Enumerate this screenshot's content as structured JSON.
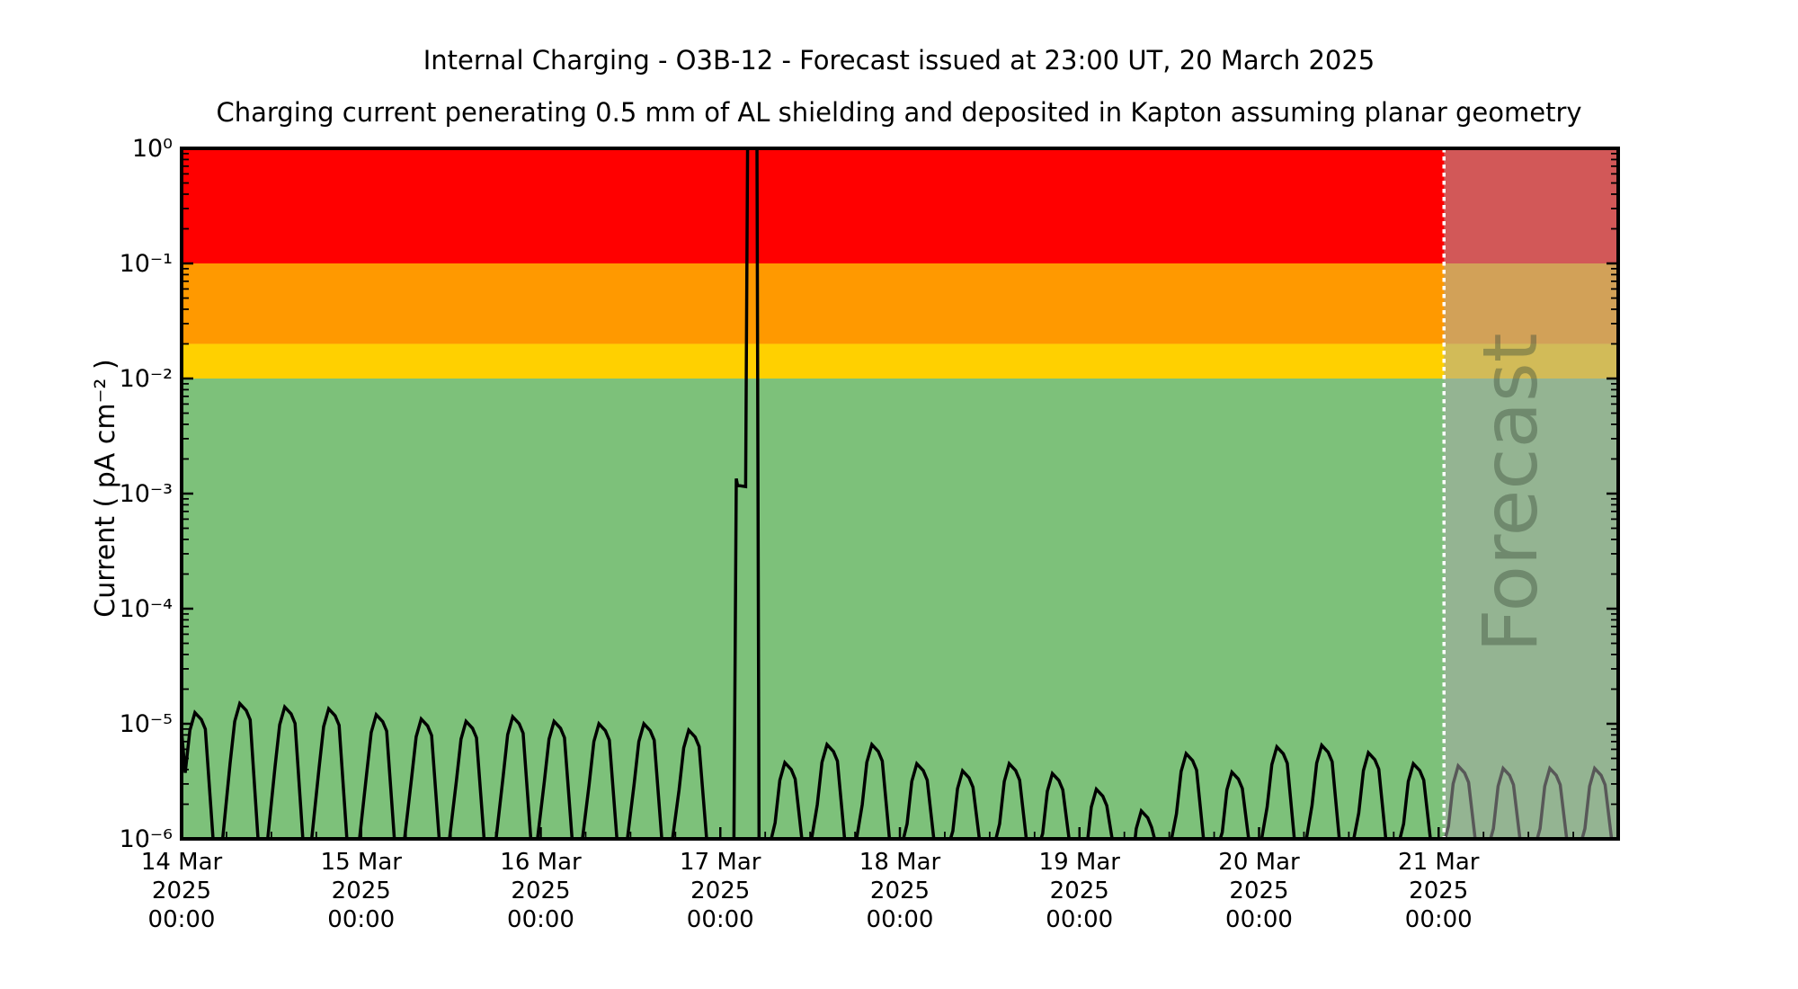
{
  "header": {
    "title": "Internal Charging - O3B-12 - Forecast issued at 23:00 UT, 20 March 2025",
    "subtitle": "Charging current penerating 0.5 mm of AL shielding and deposited in Kapton assuming planar geometry"
  },
  "chart_data": {
    "type": "line",
    "title": "Internal Charging - O3B-12 - Forecast issued at 23:00 UT, 20 March 2025",
    "subtitle": "Charging current penerating 0.5 mm of AL shielding and deposited in Kapton assuming planar geometry",
    "ylabel": "Current ( pA cm⁻² )",
    "xlabel": "",
    "yscale": "log",
    "ylim": [
      1e-06,
      1
    ],
    "grid": false,
    "legend": "none",
    "ytick_labels": [
      "10⁰",
      "10⁻¹",
      "10⁻²",
      "10⁻³",
      "10⁻⁴",
      "10⁻⁵",
      "10⁻⁶"
    ],
    "x_total_days": 8,
    "xtick_labels": [
      {
        "day": "14 Mar",
        "year": "2025",
        "time": "00:00"
      },
      {
        "day": "15 Mar",
        "year": "2025",
        "time": "00:00"
      },
      {
        "day": "16 Mar",
        "year": "2025",
        "time": "00:00"
      },
      {
        "day": "17 Mar",
        "year": "2025",
        "time": "00:00"
      },
      {
        "day": "18 Mar",
        "year": "2025",
        "time": "00:00"
      },
      {
        "day": "19 Mar",
        "year": "2025",
        "time": "00:00"
      },
      {
        "day": "20 Mar",
        "year": "2025",
        "time": "00:00"
      },
      {
        "day": "21 Mar",
        "year": "2025",
        "time": "00:00"
      }
    ],
    "bands": [
      {
        "name": "red",
        "from": 0.1,
        "to": 1.0,
        "color": "#ff0000"
      },
      {
        "name": "orange",
        "from": 0.02,
        "to": 0.1,
        "color": "#ff9900"
      },
      {
        "name": "yellow",
        "from": 0.01,
        "to": 0.02,
        "color": "#ffd000"
      },
      {
        "name": "green",
        "from": 1e-06,
        "to": 0.01,
        "color": "#7dc17a"
      }
    ],
    "forecast": {
      "label": "Forecast",
      "start_day": 7.03,
      "overlay_color": "rgba(168,168,168,0.52)",
      "divider_color": "#ffffff",
      "label_color": "rgba(60,78,60,0.42)"
    },
    "series": [
      {
        "name": "internal-charging-current",
        "color": "#000000",
        "first_point": [
          0.0,
          8.5e-06
        ],
        "peaks": [
          [
            0.08,
            1.25e-05
          ],
          [
            0.33,
            1.5e-05
          ],
          [
            0.58,
            1.4e-05
          ],
          [
            0.825,
            1.35e-05
          ],
          [
            1.09,
            1.2e-05
          ],
          [
            1.34,
            1.1e-05
          ],
          [
            1.59,
            1.05e-05
          ],
          [
            1.85,
            1.15e-05
          ],
          [
            2.08,
            1.05e-05
          ],
          [
            2.33,
            1e-05
          ],
          [
            2.58,
            1e-05
          ],
          [
            2.83,
            8.8e-06
          ],
          [
            3.365,
            4.6e-06
          ],
          [
            3.6,
            6.6e-06
          ],
          [
            3.85,
            6.6e-06
          ],
          [
            4.1,
            4.5e-06
          ],
          [
            4.355,
            3.9e-06
          ],
          [
            4.615,
            4.5e-06
          ],
          [
            4.855,
            3.7e-06
          ],
          [
            5.1,
            2.7e-06
          ],
          [
            5.35,
            1.75e-06
          ],
          [
            5.6,
            5.5e-06
          ],
          [
            5.855,
            3.8e-06
          ],
          [
            6.105,
            6.3e-06
          ],
          [
            6.355,
            6.5e-06
          ],
          [
            6.615,
            5.6e-06
          ],
          [
            6.865,
            4.5e-06
          ],
          [
            7.115,
            4.3e-06
          ],
          [
            7.365,
            4.1e-06
          ],
          [
            7.625,
            4.1e-06
          ],
          [
            7.875,
            4.1e-06
          ]
        ],
        "spike": [
          [
            3.075,
            6e-07
          ],
          [
            3.089,
            0.00135
          ],
          [
            3.096,
            0.00118
          ],
          [
            3.141,
            0.00115
          ],
          [
            3.154,
            4.0
          ],
          [
            3.203,
            4.0
          ],
          [
            3.216,
            6e-07
          ]
        ],
        "floor_value": 6e-07
      }
    ],
    "axis_color": "#000000",
    "background_color": "#ffffff"
  }
}
